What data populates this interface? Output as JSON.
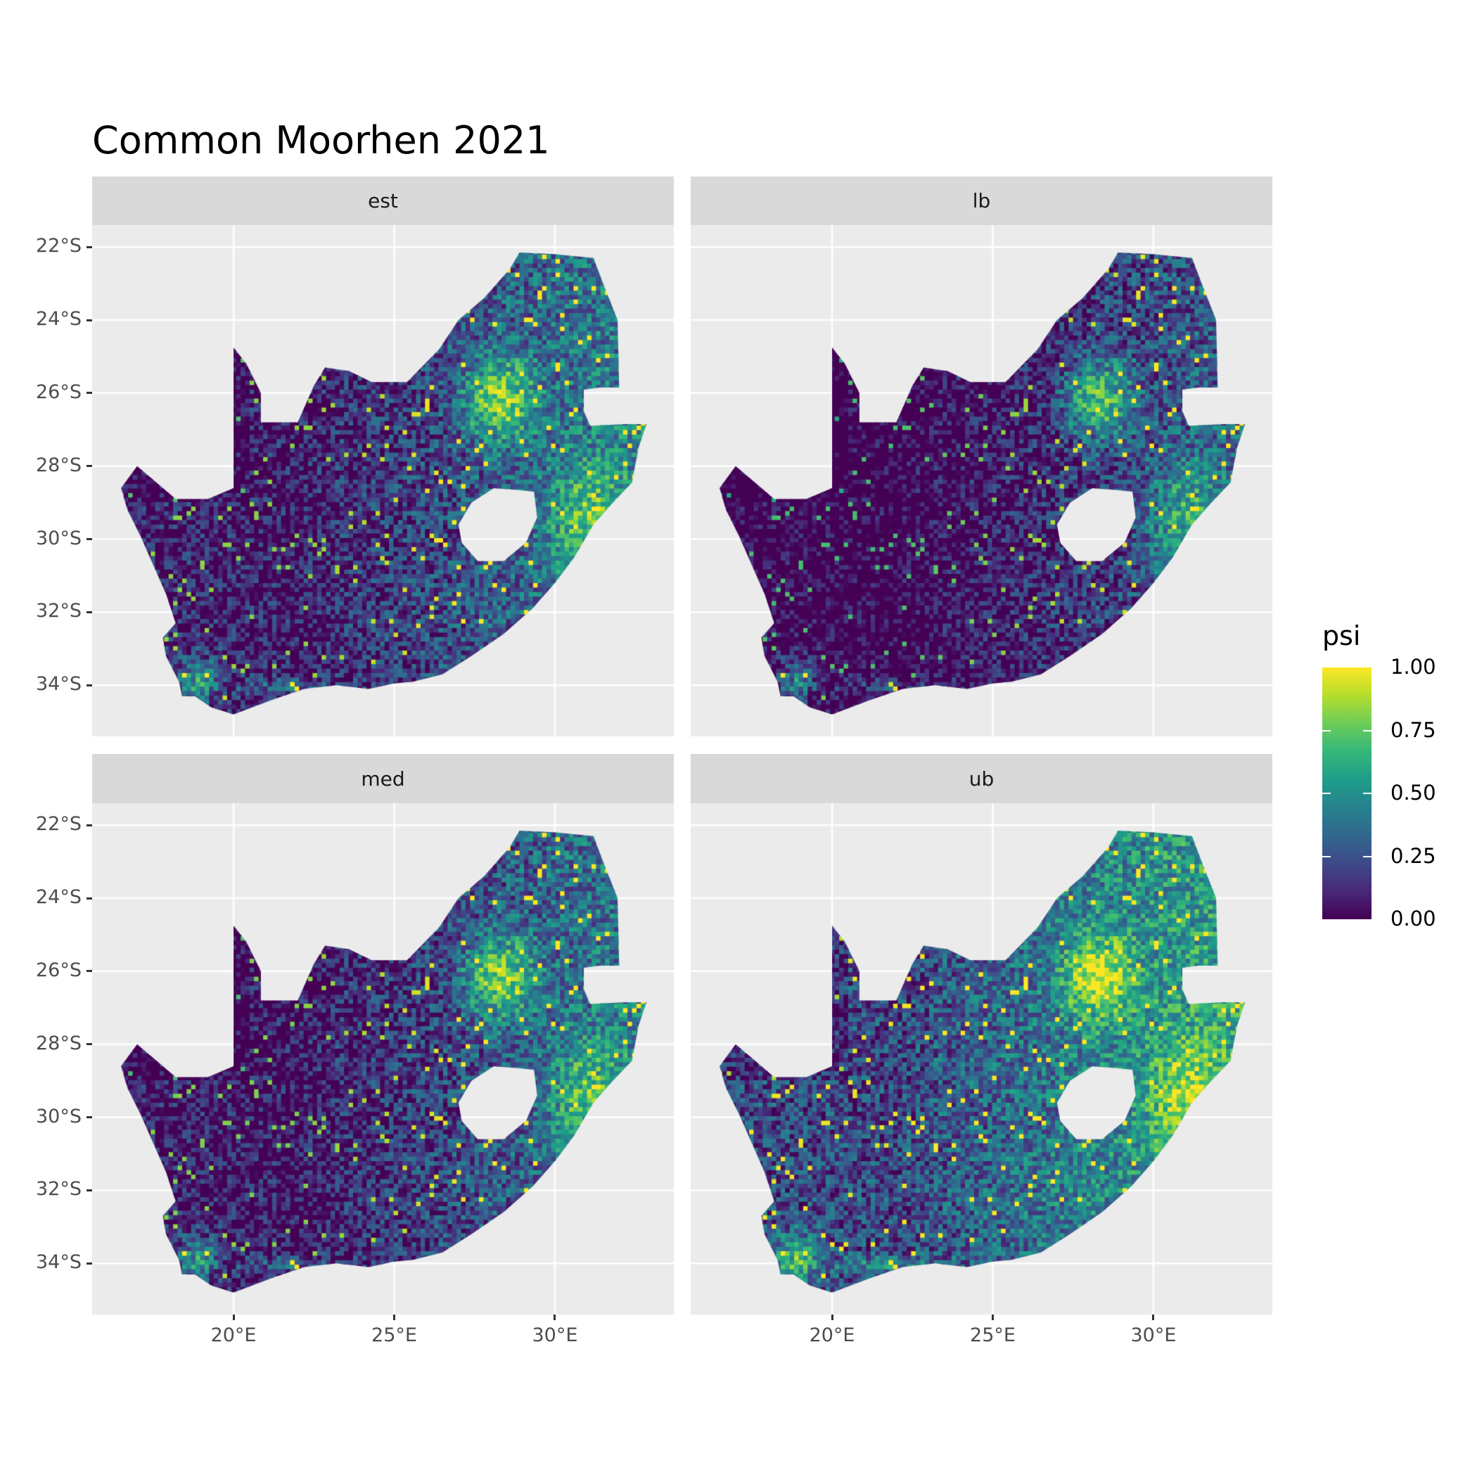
{
  "title": "Common Moorhen 2021",
  "chart_data": {
    "type": "heatmap",
    "title": "Common Moorhen 2021",
    "facets": [
      "est",
      "lb",
      "med",
      "ub"
    ],
    "x_ticks": [
      {
        "value": 20,
        "label": "20°E"
      },
      {
        "value": 25,
        "label": "25°E"
      },
      {
        "value": 30,
        "label": "30°E"
      }
    ],
    "y_ticks": [
      {
        "value": -22,
        "label": "22°S"
      },
      {
        "value": -24,
        "label": "24°S"
      },
      {
        "value": -26,
        "label": "26°S"
      },
      {
        "value": -28,
        "label": "28°S"
      },
      {
        "value": -30,
        "label": "30°S"
      },
      {
        "value": -32,
        "label": "32°S"
      },
      {
        "value": -34,
        "label": "34°S"
      }
    ],
    "xlim": [
      15.6,
      33.7
    ],
    "ylim": [
      -35.4,
      -21.4
    ],
    "grid": true,
    "colorbar": {
      "title": "psi",
      "limits": [
        0,
        1
      ],
      "ticks": [
        {
          "value": 1.0,
          "label": "1.00"
        },
        {
          "value": 0.75,
          "label": "0.75"
        },
        {
          "value": 0.5,
          "label": "0.50"
        },
        {
          "value": 0.25,
          "label": "0.25"
        },
        {
          "value": 0.0,
          "label": "0.00"
        }
      ],
      "palette": [
        "#440154",
        "#482878",
        "#3E4A89",
        "#31688E",
        "#26828E",
        "#1F9E89",
        "#35B779",
        "#6DCD59",
        "#B4DE2C",
        "#FDE725"
      ]
    },
    "legend_position": "right",
    "region": "South Africa",
    "pattern": "low psi in the arid west and interior; high psi around Gauteng (~28°E 26°S), the eastern coast and the south-western Cape; lb lowest, ub highest"
  },
  "colors": {
    "panel_bg": "#EBEBEB",
    "strip_bg": "#D9D9D9",
    "grid": "#FFFFFF"
  }
}
